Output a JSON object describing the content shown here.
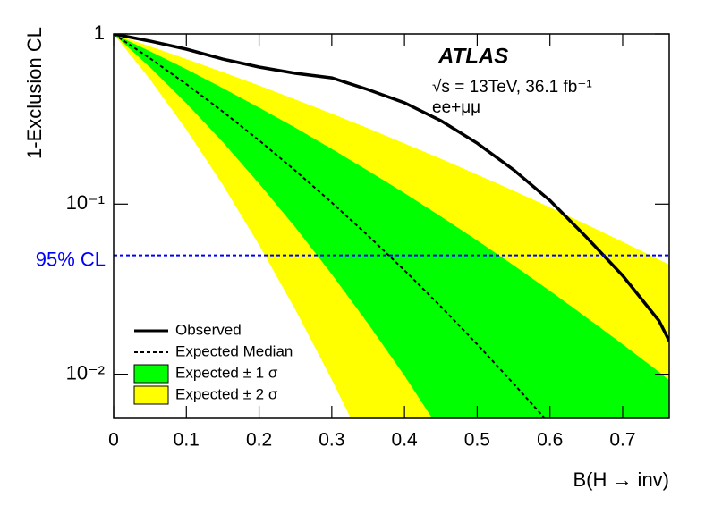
{
  "chart_data": {
    "type": "line",
    "title": "ATLAS",
    "annotations": [
      "√s = 13TeV, 36.1 fb⁻¹",
      "ee+μμ"
    ],
    "xlabel": "B(H → inv)",
    "ylabel": "1-Exclusion CL",
    "x": [
      0,
      0.05,
      0.1,
      0.15,
      0.2,
      0.25,
      0.3,
      0.35,
      0.4,
      0.45,
      0.5,
      0.55,
      0.6,
      0.65,
      0.7,
      0.75,
      0.764
    ],
    "series": [
      {
        "name": "Observed",
        "color": "#000000",
        "dashed": false,
        "values": [
          1,
          0.908,
          0.814,
          0.712,
          0.639,
          0.587,
          0.552,
          0.471,
          0.394,
          0.309,
          0.228,
          0.159,
          0.105,
          0.064,
          0.038,
          0.0206,
          0.0157
        ]
      },
      {
        "name": "Expected Median",
        "color": "#000000",
        "dashed": true,
        "values": [
          1,
          0.719,
          0.507,
          0.35,
          0.237,
          0.157,
          0.102,
          0.0652,
          0.0408,
          0.025,
          0.015,
          0.0088,
          0.0051,
          null,
          null,
          null,
          null
        ]
      }
    ],
    "bands": [
      {
        "name": "Expected ± 1 σ",
        "color": "#00ff00",
        "lower": [
          1,
          0.637,
          0.391,
          0.232,
          0.132,
          0.0729,
          0.0387,
          0.0198,
          0.0098,
          0.0046,
          null,
          null,
          null,
          null,
          null,
          null,
          null
        ],
        "upper": [
          1,
          0.791,
          0.621,
          0.481,
          0.369,
          0.281,
          0.211,
          0.157,
          0.116,
          0.0846,
          0.0611,
          0.0437,
          0.0309,
          0.0216,
          0.015,
          0.0103,
          0.0092
        ]
      },
      {
        "name": "Expected ± 2 σ",
        "color": "#ffff00",
        "lower": [
          1,
          0.541,
          0.274,
          0.13,
          0.0575,
          0.0239,
          0.0093,
          0.0034,
          null,
          null,
          null,
          null,
          null,
          null,
          null,
          null,
          null
        ],
        "upper": [
          1,
          0.846,
          0.713,
          0.597,
          0.498,
          0.412,
          0.34,
          0.279,
          0.227,
          0.185,
          0.149,
          0.12,
          0.0956,
          0.076,
          0.06,
          0.0472,
          0.044
        ]
      }
    ],
    "reference_line": {
      "value": 0.05,
      "label": "95% CL",
      "color": "#0000ff"
    },
    "xlim": [
      0,
      0.764
    ],
    "ylim": [
      0.0055,
      1
    ],
    "yscale": "log",
    "xticks": [
      0,
      0.1,
      0.2,
      0.3,
      0.4,
      0.5,
      0.6,
      0.7
    ],
    "yticks": [
      1,
      {
        "value": 0.1,
        "label": "10⁻¹"
      },
      {
        "value": 0.01,
        "label": "10⁻²"
      }
    ],
    "legend": "lower left"
  }
}
